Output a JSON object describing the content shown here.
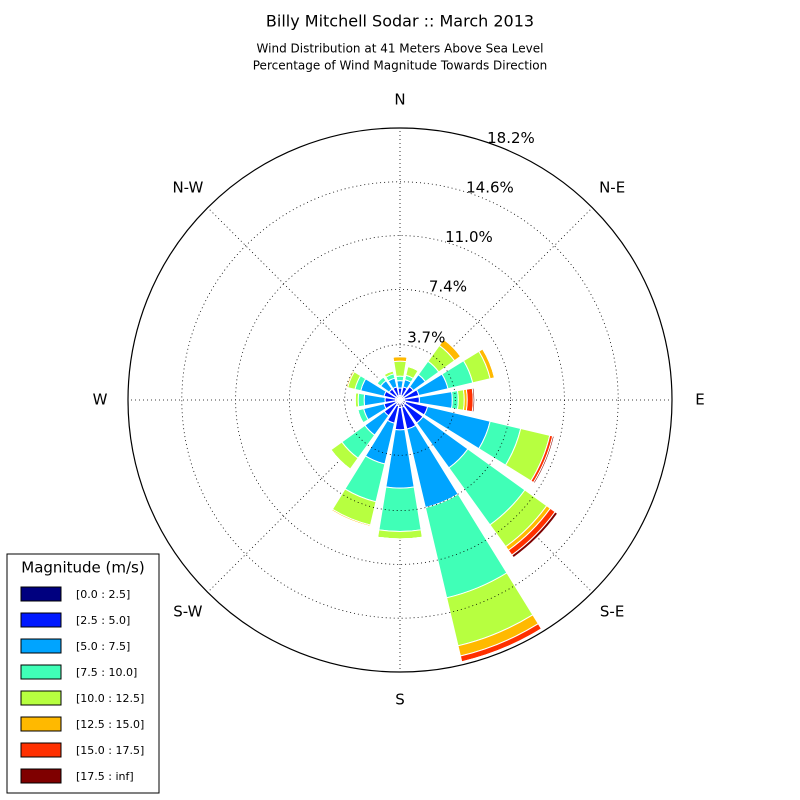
{
  "chart_data": {
    "type": "windrose",
    "title": "Billy Mitchell Sodar :: March 2013",
    "subtitle": [
      "Wind Distribution at 41 Meters Above Sea Level",
      "Percentage of Wind Magnitude Towards Direction"
    ],
    "x": [
      0,
      22.5,
      45,
      67.5,
      90,
      112.5,
      135,
      157.5,
      180,
      202.5,
      225,
      247.5,
      270,
      292.5,
      315,
      337.5
    ],
    "xticks": [
      {
        "value": 0,
        "label": "N"
      },
      {
        "value": 45,
        "label": "N-E"
      },
      {
        "value": 90,
        "label": "E"
      },
      {
        "value": 135,
        "label": "S-E"
      },
      {
        "value": 180,
        "label": "S"
      },
      {
        "value": 225,
        "label": "S-W"
      },
      {
        "value": 270,
        "label": "W"
      },
      {
        "value": 315,
        "label": "N-W"
      }
    ],
    "rlim": [
      0,
      18.2
    ],
    "rticks": [
      {
        "value": 3.7,
        "label": "3.7%"
      },
      {
        "value": 7.4,
        "label": "7.4%"
      },
      {
        "value": 11.0,
        "label": "11.0%"
      },
      {
        "value": 14.6,
        "label": "14.6%"
      },
      {
        "value": 18.2,
        "label": "18.2%"
      }
    ],
    "grid": true,
    "legend_title": "Magnitude (m/s)",
    "legend_position": "lower-left",
    "series": [
      {
        "name": "[0.0 : 2.5]",
        "color": "#00007f",
        "values": [
          0.3,
          0.3,
          0.3,
          0.3,
          0.3,
          0.4,
          0.4,
          0.5,
          0.5,
          0.4,
          0.3,
          0.3,
          0.3,
          0.3,
          0.3,
          0.3
        ]
      },
      {
        "name": "[2.5 : 5.0]",
        "color": "#0019ff",
        "values": [
          0.5,
          0.6,
          0.8,
          1.0,
          1.0,
          1.5,
          1.5,
          1.5,
          1.5,
          1.2,
          1.0,
          0.8,
          0.7,
          0.8,
          0.6,
          0.6
        ]
      },
      {
        "name": "[5.0 : 7.5]",
        "color": "#00a4ff",
        "values": [
          0.5,
          0.5,
          1.0,
          2.0,
          2.2,
          4.3,
          3.7,
          5.4,
          3.9,
          2.8,
          1.6,
          1.4,
          1.4,
          1.6,
          0.7,
          0.6
        ]
      },
      {
        "name": "[7.5 : 10.0]",
        "color": "#40ffb7",
        "values": [
          0.3,
          0.3,
          1.1,
          1.7,
          0.4,
          2.1,
          4.7,
          6.2,
          2.9,
          2.6,
          1.9,
          0.4,
          0.4,
          0.4,
          0.3,
          0.3
        ]
      },
      {
        "name": "[10.0 : 12.5]",
        "color": "#b7ff40",
        "values": [
          1.0,
          0.6,
          1.3,
          1.2,
          0.4,
          2.0,
          1.8,
          3.3,
          0.5,
          1.6,
          0.9,
          0,
          0.2,
          0.5,
          0,
          0.2
        ]
      },
      {
        "name": "[12.5 : 15.0]",
        "color": "#ffb900",
        "values": [
          0.3,
          0,
          0.5,
          0.3,
          0.2,
          0,
          0.3,
          0.7,
          0,
          0.1,
          0,
          0,
          0,
          0.1,
          0,
          0
        ]
      },
      {
        "name": "[15.0 : 17.5]",
        "color": "#ff3000",
        "values": [
          0,
          0,
          0,
          0,
          0.4,
          0.2,
          0.4,
          0.4,
          0,
          0,
          0,
          0,
          0,
          0,
          0,
          0
        ]
      },
      {
        "name": "[17.5 : inf]",
        "color": "#7f0000",
        "values": [
          0,
          0,
          0,
          0,
          0.1,
          0.1,
          0.2,
          0,
          0,
          0,
          0,
          0,
          0,
          0,
          0,
          0
        ]
      }
    ]
  }
}
